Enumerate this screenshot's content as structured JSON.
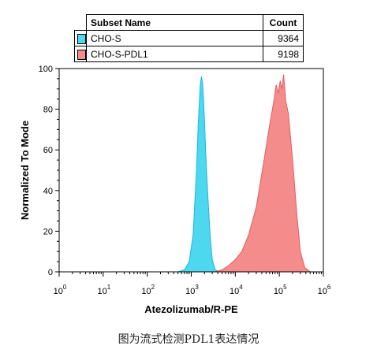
{
  "legend": {
    "header_name": "Subset Name",
    "header_count": "Count",
    "rows": [
      {
        "name": "CHO-S",
        "count": "9364",
        "color": "#4dd8f0"
      },
      {
        "name": "CHO-S-PDL1",
        "count": "9198",
        "color": "#f58c8c"
      }
    ]
  },
  "caption": "图为流式检测PDL1表达情况",
  "chart_data": {
    "type": "area",
    "xlabel": "Atezolizumab/R-PE",
    "ylabel": "Normalized To Mode",
    "xscale": "log",
    "xlim": [
      1,
      1000000
    ],
    "ylim": [
      0,
      100
    ],
    "x_ticks": [
      {
        "base": "10",
        "exp": "0"
      },
      {
        "base": "10",
        "exp": "1"
      },
      {
        "base": "10",
        "exp": "2"
      },
      {
        "base": "10",
        "exp": "3"
      },
      {
        "base": "10",
        "exp": "4"
      },
      {
        "base": "10",
        "exp": "5"
      },
      {
        "base": "10",
        "exp": "6"
      }
    ],
    "y_ticks": [
      "0",
      "20",
      "40",
      "60",
      "80",
      "100"
    ],
    "legend_placement": "top",
    "series": [
      {
        "name": "CHO-S",
        "color": "#4dd8f0",
        "edge": "#18b8dc",
        "x": [
          500,
          700,
          900,
          1100,
          1300,
          1450,
          1600,
          1700,
          1800,
          1900,
          2000,
          2100,
          2200,
          2400,
          2700,
          3000,
          3500,
          4200,
          5500
        ],
        "y": [
          0,
          1,
          5,
          18,
          48,
          74,
          92,
          96,
          93,
          85,
          74,
          62,
          52,
          36,
          17,
          6,
          1,
          0,
          0
        ]
      },
      {
        "name": "CHO-S-PDL1",
        "color": "#f58c8c",
        "edge": "#e85a5a",
        "x": [
          3500,
          5000,
          7000,
          10000,
          14000,
          20000,
          30000,
          45000,
          60000,
          75000,
          85000,
          95000,
          105000,
          115000,
          125000,
          140000,
          160000,
          200000,
          250000,
          300000,
          380000,
          500000
        ],
        "y": [
          0,
          1,
          3,
          6,
          10,
          18,
          32,
          55,
          72,
          84,
          92,
          88,
          94,
          90,
          97,
          84,
          78,
          55,
          28,
          10,
          2,
          0
        ]
      }
    ]
  }
}
